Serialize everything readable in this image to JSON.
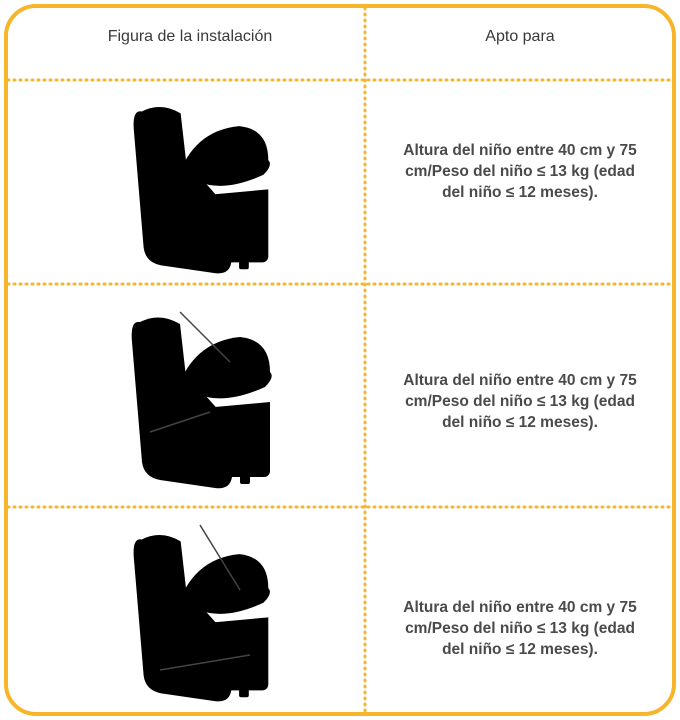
{
  "table": {
    "headers": [
      "Figura de la instalación",
      "Apto para"
    ],
    "rows": [
      "Altura del niño entre 40 cm y 75 cm/Peso del niño ≤ 13 kg (edad del niño ≤ 12 meses).",
      "Altura del niño entre 40 cm y 75 cm/Peso del niño ≤ 13 kg (edad del niño ≤ 12 meses).",
      "Altura del niño entre 40 cm y 75 cm/Peso del niño ≤ 13 kg (edad del niño ≤ 12 meses)."
    ]
  }
}
